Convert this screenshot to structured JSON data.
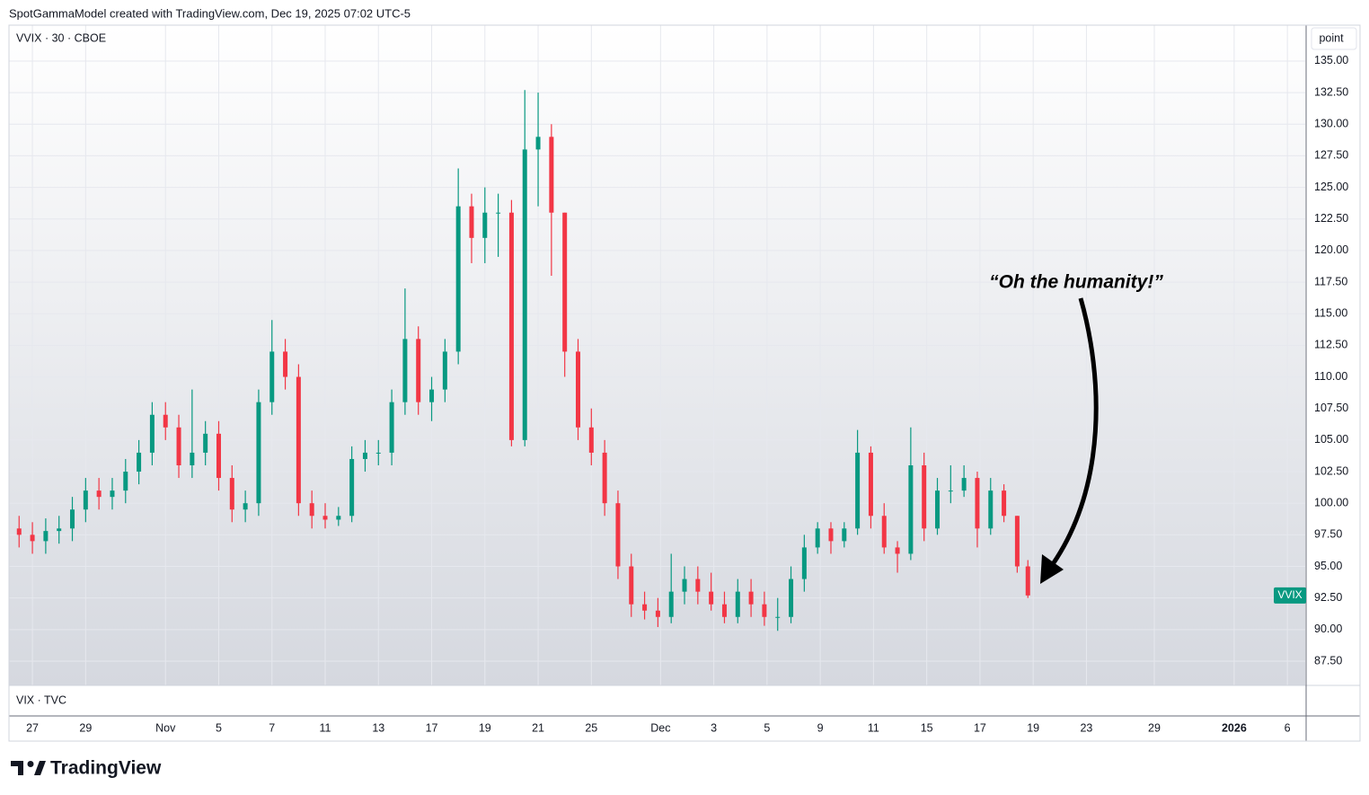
{
  "header": "SpotGammaModel created with TradingView.com, Dec 19, 2025 07:02 UTC-5",
  "logo": "TradingView",
  "chart_data": {
    "type": "candlestick",
    "legend": "VVIX · 30 · CBOE",
    "scale_unit": "point",
    "price_tag": "VVIX",
    "annotation": "“Oh the humanity!”",
    "lower_pane": "VIX · TVC",
    "colors": {
      "up": "#089981",
      "down": "#f23645"
    },
    "grid": true,
    "x": [
      -0.5,
      0,
      0.5,
      1,
      1.5,
      2,
      2.5,
      3,
      3.5,
      4,
      4.5,
      5,
      5.5,
      6,
      6.5,
      7,
      7.5,
      8,
      8.5,
      9,
      9.5,
      10,
      10.5,
      11,
      11.5,
      12,
      12.5,
      13,
      13.5,
      14,
      14.5,
      15,
      15.5,
      16,
      16.5,
      17,
      17.5,
      18,
      18.5,
      19,
      19.5,
      20,
      20.5,
      21,
      21.5,
      22,
      22.5,
      23,
      23.5,
      24,
      24.5,
      25,
      25.5,
      26,
      26.5,
      27,
      27.5,
      28,
      28.5,
      29,
      29.5,
      30,
      30.5,
      31,
      31.5,
      32,
      32.5,
      33,
      33.5,
      34,
      34.5,
      35,
      35.5,
      36,
      36.5,
      37,
      37.4
    ],
    "open": [
      98,
      97.5,
      97,
      97.8,
      98,
      99.5,
      101,
      100.5,
      101,
      102.5,
      104,
      107,
      106,
      103,
      104,
      105.5,
      102,
      99.5,
      100,
      108,
      112,
      110,
      100,
      99,
      98.7,
      99,
      103.5,
      104,
      104,
      108,
      113,
      108,
      109,
      112,
      123.5,
      121,
      123,
      123,
      105,
      128,
      129,
      123,
      112,
      106,
      104,
      100,
      95,
      92,
      91.5,
      91,
      93,
      94,
      93,
      92,
      91,
      93,
      92,
      91,
      91,
      94,
      96.5,
      98,
      97,
      98,
      104,
      99,
      96.5,
      96,
      103,
      98,
      101,
      101,
      102,
      98,
      101,
      99,
      95
    ],
    "high": [
      99,
      98.5,
      98.8,
      99,
      100.5,
      102,
      102,
      102,
      103.5,
      105,
      108,
      108,
      107,
      109,
      106.5,
      106.5,
      103,
      101,
      109,
      114.5,
      113,
      111,
      101,
      100,
      99.7,
      104.5,
      105,
      105,
      109,
      117,
      114,
      110,
      113,
      126.5,
      124.5,
      125,
      124.5,
      124,
      132.7,
      132.5,
      130,
      123,
      113,
      107.5,
      105,
      101,
      96,
      93,
      92.5,
      96,
      95,
      95,
      94.5,
      93,
      94,
      94,
      93,
      92.5,
      95,
      97.5,
      98.5,
      98.5,
      98.5,
      105.8,
      104.5,
      100,
      97,
      106,
      104,
      102,
      103,
      103,
      102.5,
      102,
      101.5,
      99,
      95.5
    ],
    "low": [
      96.5,
      96,
      96,
      96.8,
      97,
      98.5,
      99.5,
      99.5,
      100,
      101.5,
      103,
      105,
      102,
      102,
      103,
      101,
      98.5,
      98.5,
      99,
      107,
      109,
      99,
      98,
      98,
      98.2,
      98.5,
      102.5,
      103,
      103,
      107,
      107,
      106.5,
      108,
      111,
      119,
      119,
      119.5,
      104.5,
      104.5,
      123.5,
      118,
      110,
      105,
      103,
      99,
      94,
      91,
      90.8,
      90.2,
      90.5,
      92,
      92,
      91.5,
      90.5,
      90.5,
      91,
      90.3,
      89.9,
      90.5,
      93,
      96,
      96,
      96.5,
      97.5,
      98,
      96,
      94.5,
      95.5,
      97,
      97.5,
      100,
      100.5,
      96.5,
      97.5,
      98.5,
      94.5,
      92.5
    ],
    "close": [
      97.5,
      97,
      97.8,
      98,
      99.5,
      101,
      100.5,
      101,
      102.5,
      104,
      107,
      106,
      103,
      104,
      105.5,
      102,
      99.5,
      100,
      108,
      112,
      110,
      100,
      99,
      98.7,
      99,
      103.5,
      104,
      104,
      108,
      113,
      108,
      109,
      112,
      123.5,
      121,
      123,
      123,
      105,
      128,
      129,
      123,
      112,
      106,
      104,
      100,
      95,
      92,
      91.5,
      91,
      93,
      94,
      93,
      92,
      91,
      93,
      92,
      91,
      91,
      94,
      96.5,
      98,
      97,
      98,
      104,
      99,
      96.5,
      96,
      103,
      98,
      101,
      101,
      102,
      98,
      101,
      99,
      95,
      92.7
    ],
    "xlim": [
      -0.88,
      47.82
    ],
    "xticks": [
      {
        "value": 0,
        "label": "27"
      },
      {
        "value": 2,
        "label": "29"
      },
      {
        "value": 5,
        "label": "Nov"
      },
      {
        "value": 7,
        "label": "5"
      },
      {
        "value": 9,
        "label": "7"
      },
      {
        "value": 11,
        "label": "11"
      },
      {
        "value": 13,
        "label": "13"
      },
      {
        "value": 15,
        "label": "17"
      },
      {
        "value": 17,
        "label": "19"
      },
      {
        "value": 19,
        "label": "21"
      },
      {
        "value": 21,
        "label": "25"
      },
      {
        "value": 23.6,
        "label": "Dec"
      },
      {
        "value": 25.6,
        "label": "3"
      },
      {
        "value": 27.6,
        "label": "5"
      },
      {
        "value": 29.6,
        "label": "9"
      },
      {
        "value": 31.6,
        "label": "11"
      },
      {
        "value": 33.6,
        "label": "15"
      },
      {
        "value": 35.6,
        "label": "17"
      },
      {
        "value": 37.6,
        "label": "19"
      },
      {
        "value": 39.6,
        "label": "23"
      },
      {
        "value": 42.15,
        "label": "29"
      },
      {
        "value": 45.15,
        "label": "2026"
      },
      {
        "value": 47.15,
        "label": "6"
      }
    ],
    "ylim": [
      85.58,
      137.84
    ],
    "yticks": [
      {
        "value": 87.5,
        "label": "87.50"
      },
      {
        "value": 90,
        "label": "90.00"
      },
      {
        "value": 92.5,
        "label": "92.50"
      },
      {
        "value": 95,
        "label": "95.00"
      },
      {
        "value": 97.5,
        "label": "97.50"
      },
      {
        "value": 100,
        "label": "100.00"
      },
      {
        "value": 102.5,
        "label": "102.50"
      },
      {
        "value": 105,
        "label": "105.00"
      },
      {
        "value": 107.5,
        "label": "107.50"
      },
      {
        "value": 110,
        "label": "110.00"
      },
      {
        "value": 112.5,
        "label": "112.50"
      },
      {
        "value": 115,
        "label": "115.00"
      },
      {
        "value": 117.5,
        "label": "117.50"
      },
      {
        "value": 120,
        "label": "120.00"
      },
      {
        "value": 122.5,
        "label": "122.50"
      },
      {
        "value": 125,
        "label": "125.00"
      },
      {
        "value": 127.5,
        "label": "127.50"
      },
      {
        "value": 130,
        "label": "130.00"
      },
      {
        "value": 132.5,
        "label": "132.50"
      },
      {
        "value": 135,
        "label": "135.00"
      }
    ]
  }
}
